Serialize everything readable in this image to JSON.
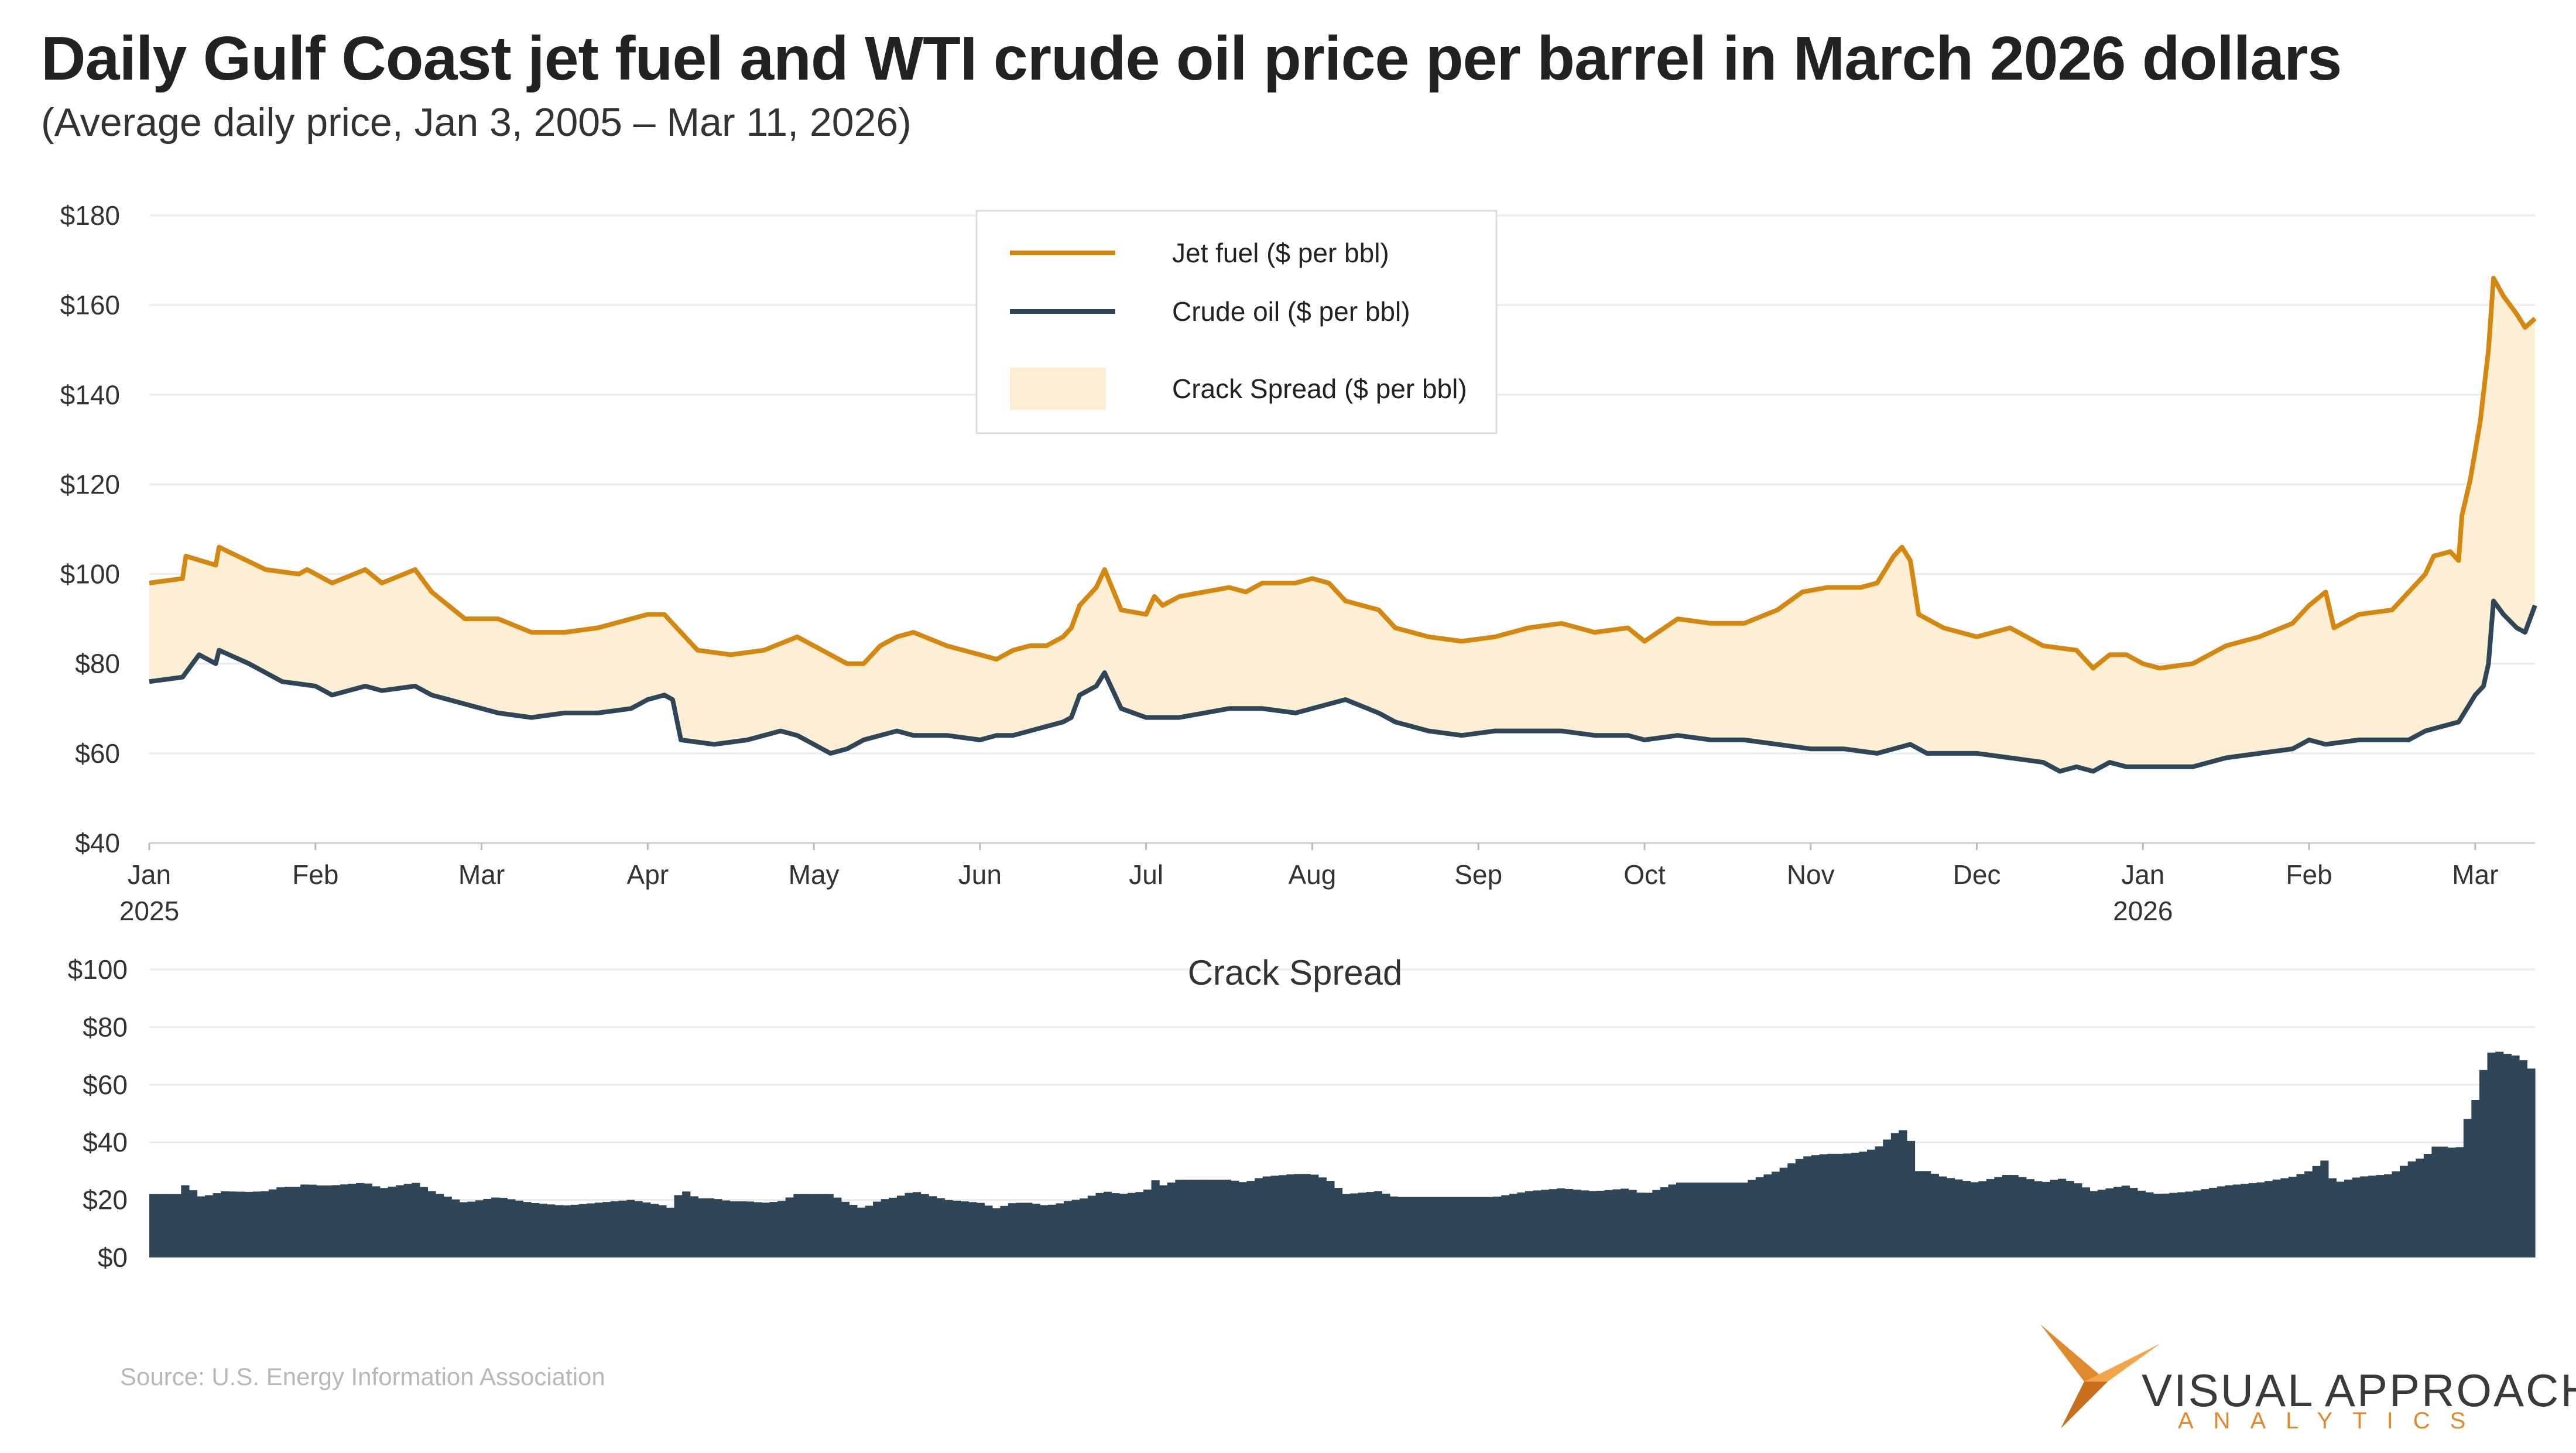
{
  "title": "Daily Gulf Coast jet fuel and WTI crude oil price per barrel in March 2026 dollars",
  "subtitle": "(Average daily price, Jan 3, 2005 – Mar 11, 2026)",
  "source": "Source:  U.S. Energy Information Association",
  "logo": {
    "main": "VISUAL APPROACH",
    "sub": "ANALYTICS"
  },
  "colors": {
    "jet": "#d4880f",
    "crude": "#2e4657",
    "spread_fill": "#fdeed6",
    "bars": "#2e4657",
    "grid": "#ebebeb",
    "logo_orange": "#e08a2e"
  },
  "chart_data": [
    {
      "type": "line",
      "title": "",
      "xlabel": "",
      "ylabel": "",
      "ylim": [
        40,
        180
      ],
      "yticks": [
        "$40",
        "$60",
        "$80",
        "$100",
        "$120",
        "$140",
        "$160",
        "$180"
      ],
      "yticks_values": [
        40,
        60,
        80,
        100,
        120,
        140,
        160,
        180
      ],
      "xticks": [
        {
          "label": "Jan",
          "sub": "2025",
          "x": 0
        },
        {
          "label": "Feb",
          "sub": "",
          "x": 1
        },
        {
          "label": "Mar",
          "sub": "",
          "x": 2
        },
        {
          "label": "Apr",
          "sub": "",
          "x": 3
        },
        {
          "label": "May",
          "sub": "",
          "x": 4
        },
        {
          "label": "Jun",
          "sub": "",
          "x": 5
        },
        {
          "label": "Jul",
          "sub": "",
          "x": 6
        },
        {
          "label": "Aug",
          "sub": "",
          "x": 7
        },
        {
          "label": "Sep",
          "sub": "",
          "x": 8
        },
        {
          "label": "Oct",
          "sub": "",
          "x": 9
        },
        {
          "label": "Nov",
          "sub": "",
          "x": 10
        },
        {
          "label": "Dec",
          "sub": "",
          "x": 11
        },
        {
          "label": "Jan",
          "sub": "2026",
          "x": 12
        },
        {
          "label": "Feb",
          "sub": "",
          "x": 13
        },
        {
          "label": "Mar",
          "sub": "",
          "x": 14
        }
      ],
      "x_range": [
        0,
        14.36
      ],
      "legend": {
        "placement": "top-center",
        "jet_label": "Jet fuel ($ per bbl)",
        "crude_label": "Crude oil ($ per bbl)",
        "spread_label": "Crack Spread ($ per bbl)"
      },
      "series": [
        {
          "name": "Jet fuel ($ per bbl)",
          "points": [
            [
              0,
              98
            ],
            [
              0.2,
              99
            ],
            [
              0.22,
              104
            ],
            [
              0.4,
              102
            ],
            [
              0.42,
              106
            ],
            [
              0.7,
              101
            ],
            [
              0.9,
              100
            ],
            [
              0.95,
              101
            ],
            [
              1.1,
              98
            ],
            [
              1.3,
              101
            ],
            [
              1.4,
              98
            ],
            [
              1.6,
              101
            ],
            [
              1.7,
              96
            ],
            [
              1.9,
              90
            ],
            [
              2.1,
              90
            ],
            [
              2.3,
              87
            ],
            [
              2.5,
              87
            ],
            [
              2.7,
              88
            ],
            [
              2.9,
              90
            ],
            [
              3.0,
              91
            ],
            [
              3.1,
              91
            ],
            [
              3.3,
              83
            ],
            [
              3.5,
              82
            ],
            [
              3.7,
              83
            ],
            [
              3.9,
              86
            ],
            [
              4.0,
              84
            ],
            [
              4.1,
              82
            ],
            [
              4.2,
              80
            ],
            [
              4.3,
              80
            ],
            [
              4.4,
              84
            ],
            [
              4.5,
              86
            ],
            [
              4.6,
              87
            ],
            [
              4.8,
              84
            ],
            [
              5.0,
              82
            ],
            [
              5.1,
              81
            ],
            [
              5.2,
              83
            ],
            [
              5.3,
              84
            ],
            [
              5.4,
              84
            ],
            [
              5.5,
              86
            ],
            [
              5.55,
              88
            ],
            [
              5.6,
              93
            ],
            [
              5.7,
              97
            ],
            [
              5.75,
              101
            ],
            [
              5.85,
              92
            ],
            [
              6.0,
              91
            ],
            [
              6.05,
              95
            ],
            [
              6.1,
              93
            ],
            [
              6.2,
              95
            ],
            [
              6.35,
              96
            ],
            [
              6.5,
              97
            ],
            [
              6.6,
              96
            ],
            [
              6.7,
              98
            ],
            [
              6.9,
              98
            ],
            [
              7.0,
              99
            ],
            [
              7.1,
              98
            ],
            [
              7.2,
              94
            ],
            [
              7.4,
              92
            ],
            [
              7.5,
              88
            ],
            [
              7.7,
              86
            ],
            [
              7.9,
              85
            ],
            [
              8.1,
              86
            ],
            [
              8.3,
              88
            ],
            [
              8.5,
              89
            ],
            [
              8.7,
              87
            ],
            [
              8.9,
              88
            ],
            [
              9.0,
              85
            ],
            [
              9.2,
              90
            ],
            [
              9.4,
              89
            ],
            [
              9.6,
              89
            ],
            [
              9.8,
              92
            ],
            [
              9.95,
              96
            ],
            [
              10.1,
              97
            ],
            [
              10.3,
              97
            ],
            [
              10.4,
              98
            ],
            [
              10.5,
              104
            ],
            [
              10.55,
              106
            ],
            [
              10.6,
              103
            ],
            [
              10.65,
              91
            ],
            [
              10.8,
              88
            ],
            [
              11.0,
              86
            ],
            [
              11.2,
              88
            ],
            [
              11.4,
              84
            ],
            [
              11.6,
              83
            ],
            [
              11.7,
              79
            ],
            [
              11.8,
              82
            ],
            [
              11.9,
              82
            ],
            [
              12.0,
              80
            ],
            [
              12.1,
              79
            ],
            [
              12.3,
              80
            ],
            [
              12.5,
              84
            ],
            [
              12.7,
              86
            ],
            [
              12.9,
              89
            ],
            [
              13.0,
              93
            ],
            [
              13.1,
              96
            ],
            [
              13.15,
              88
            ],
            [
              13.3,
              91
            ],
            [
              13.5,
              92
            ],
            [
              13.6,
              96
            ],
            [
              13.7,
              100
            ],
            [
              13.75,
              104
            ],
            [
              13.85,
              105
            ],
            [
              13.9,
              103
            ],
            [
              13.92,
              113
            ],
            [
              13.97,
              121
            ],
            [
              14.03,
              134
            ],
            [
              14.08,
              150
            ],
            [
              14.11,
              166
            ],
            [
              14.17,
              162
            ],
            [
              14.25,
              158
            ],
            [
              14.3,
              155
            ],
            [
              14.36,
              157
            ]
          ]
        },
        {
          "name": "Crude oil ($ per bbl)",
          "points": [
            [
              0,
              76
            ],
            [
              0.2,
              77
            ],
            [
              0.3,
              82
            ],
            [
              0.4,
              80
            ],
            [
              0.42,
              83
            ],
            [
              0.6,
              80
            ],
            [
              0.8,
              76
            ],
            [
              1.0,
              75
            ],
            [
              1.1,
              73
            ],
            [
              1.3,
              75
            ],
            [
              1.4,
              74
            ],
            [
              1.6,
              75
            ],
            [
              1.7,
              73
            ],
            [
              1.9,
              71
            ],
            [
              2.1,
              69
            ],
            [
              2.3,
              68
            ],
            [
              2.5,
              69
            ],
            [
              2.7,
              69
            ],
            [
              2.9,
              70
            ],
            [
              3.0,
              72
            ],
            [
              3.1,
              73
            ],
            [
              3.15,
              72
            ],
            [
              3.2,
              63
            ],
            [
              3.4,
              62
            ],
            [
              3.6,
              63
            ],
            [
              3.8,
              65
            ],
            [
              3.9,
              64
            ],
            [
              4.0,
              62
            ],
            [
              4.1,
              60
            ],
            [
              4.2,
              61
            ],
            [
              4.3,
              63
            ],
            [
              4.5,
              65
            ],
            [
              4.6,
              64
            ],
            [
              4.8,
              64
            ],
            [
              5.0,
              63
            ],
            [
              5.1,
              64
            ],
            [
              5.2,
              64
            ],
            [
              5.4,
              66
            ],
            [
              5.5,
              67
            ],
            [
              5.55,
              68
            ],
            [
              5.6,
              73
            ],
            [
              5.7,
              75
            ],
            [
              5.75,
              78
            ],
            [
              5.85,
              70
            ],
            [
              6.0,
              68
            ],
            [
              6.2,
              68
            ],
            [
              6.35,
              69
            ],
            [
              6.5,
              70
            ],
            [
              6.7,
              70
            ],
            [
              6.9,
              69
            ],
            [
              7.0,
              70
            ],
            [
              7.1,
              71
            ],
            [
              7.2,
              72
            ],
            [
              7.4,
              69
            ],
            [
              7.5,
              67
            ],
            [
              7.7,
              65
            ],
            [
              7.9,
              64
            ],
            [
              8.1,
              65
            ],
            [
              8.3,
              65
            ],
            [
              8.5,
              65
            ],
            [
              8.7,
              64
            ],
            [
              8.9,
              64
            ],
            [
              9.0,
              63
            ],
            [
              9.2,
              64
            ],
            [
              9.4,
              63
            ],
            [
              9.6,
              63
            ],
            [
              9.8,
              62
            ],
            [
              10.0,
              61
            ],
            [
              10.2,
              61
            ],
            [
              10.4,
              60
            ],
            [
              10.5,
              61
            ],
            [
              10.6,
              62
            ],
            [
              10.7,
              60
            ],
            [
              10.9,
              60
            ],
            [
              11.0,
              60
            ],
            [
              11.2,
              59
            ],
            [
              11.4,
              58
            ],
            [
              11.5,
              56
            ],
            [
              11.6,
              57
            ],
            [
              11.7,
              56
            ],
            [
              11.8,
              58
            ],
            [
              11.9,
              57
            ],
            [
              12.0,
              57
            ],
            [
              12.1,
              57
            ],
            [
              12.3,
              57
            ],
            [
              12.5,
              59
            ],
            [
              12.7,
              60
            ],
            [
              12.9,
              61
            ],
            [
              13.0,
              63
            ],
            [
              13.1,
              62
            ],
            [
              13.3,
              63
            ],
            [
              13.5,
              63
            ],
            [
              13.6,
              63
            ],
            [
              13.7,
              65
            ],
            [
              13.8,
              66
            ],
            [
              13.9,
              67
            ],
            [
              13.95,
              70
            ],
            [
              14.0,
              73
            ],
            [
              14.05,
              75
            ],
            [
              14.08,
              80
            ],
            [
              14.11,
              94
            ],
            [
              14.17,
              91
            ],
            [
              14.25,
              88
            ],
            [
              14.3,
              87
            ],
            [
              14.36,
              93
            ]
          ]
        }
      ]
    },
    {
      "type": "bar",
      "title": "Crack Spread",
      "ylim": [
        0,
        100
      ],
      "yticks": [
        "$0",
        "$20",
        "$40",
        "$60",
        "$80",
        "$100"
      ],
      "yticks_values": [
        0,
        20,
        40,
        60,
        80,
        100
      ],
      "note": "bar heights are jet fuel minus crude oil, daily",
      "x_range": [
        0,
        14.36
      ]
    }
  ]
}
